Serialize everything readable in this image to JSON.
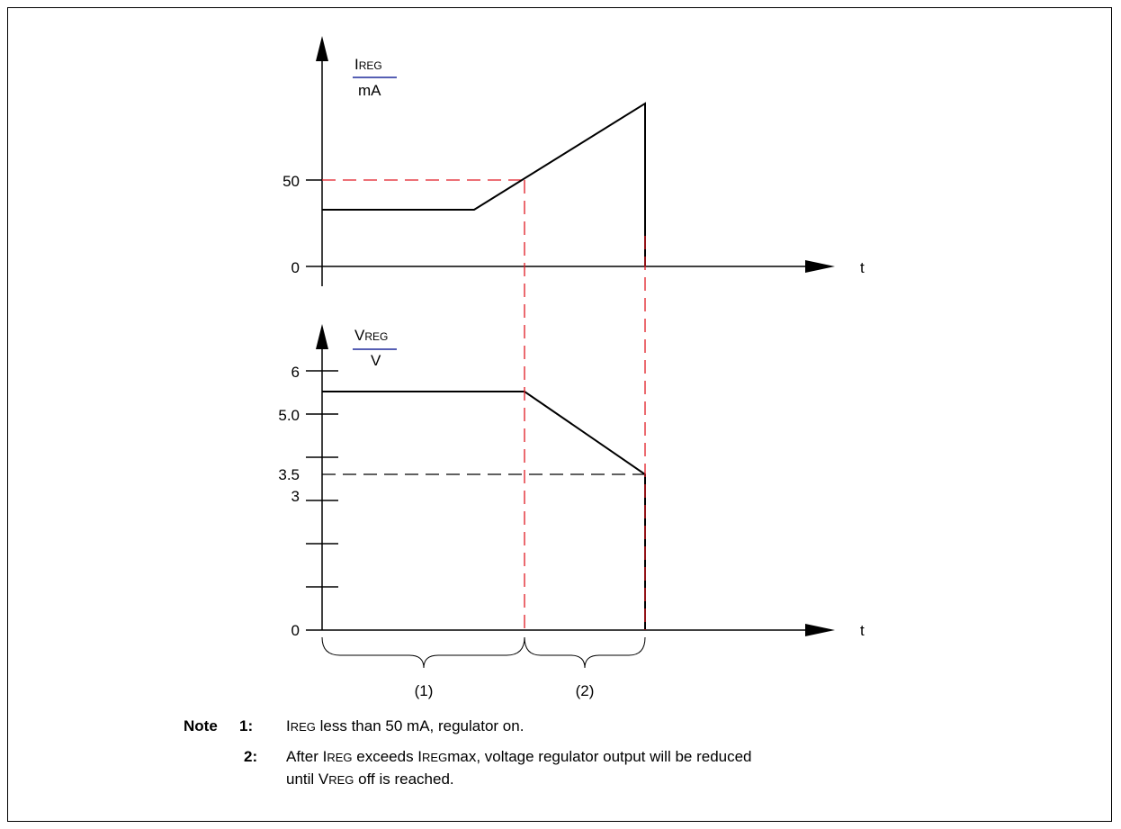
{
  "chart_data": [
    {
      "type": "line",
      "ylabel": {
        "main": "I",
        "sub": "REG",
        "unit": "mA"
      },
      "xlabel": "t",
      "y_ticks": [
        "50",
        "0"
      ],
      "reference_value": 50
    },
    {
      "type": "line",
      "ylabel": {
        "main": "V",
        "sub": "REG",
        "unit": "V"
      },
      "xlabel": "t",
      "y_ticks": [
        "6",
        "5.0",
        "3.5",
        "3",
        "0"
      ],
      "reference_value": 3.5
    }
  ],
  "regions": [
    "(1)",
    "(2)"
  ],
  "notes": {
    "heading": "Note",
    "items": [
      {
        "number": "1:",
        "segments": [
          {
            "text": "I",
            "small": false
          },
          {
            "text": "REG",
            "small": true
          },
          {
            "text": " less than 50 mA, regulator on.",
            "small": false
          }
        ]
      },
      {
        "number": "2:",
        "line1": [
          {
            "text": "After I",
            "small": false
          },
          {
            "text": "REG",
            "small": true
          },
          {
            "text": " exceeds I",
            "small": false
          },
          {
            "text": "REG",
            "small": true
          },
          {
            "text": "max, voltage regulator output will be reduced",
            "small": false
          }
        ],
        "line2": [
          {
            "text": "until V",
            "small": false
          },
          {
            "text": "REG",
            "small": true
          },
          {
            "text": " off is reached.",
            "small": false
          }
        ]
      }
    ]
  }
}
